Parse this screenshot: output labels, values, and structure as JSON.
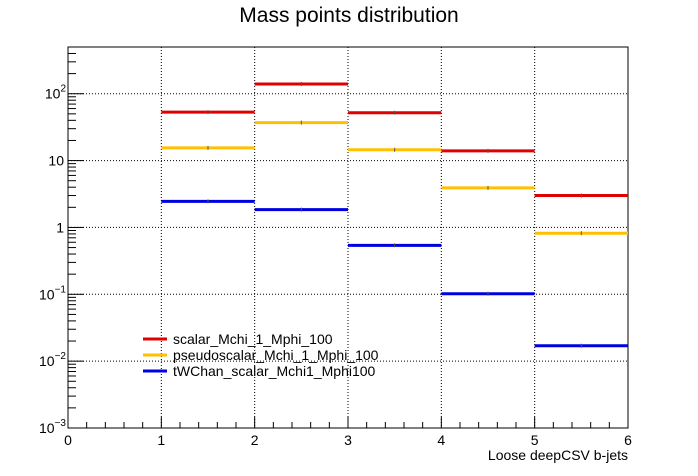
{
  "chart_data": {
    "type": "step",
    "title": "Mass points distribution",
    "xlabel": "Loose deepCSV b-jets",
    "ylabel": "",
    "xlim": [
      0,
      6
    ],
    "ylim": [
      0.001,
      500
    ],
    "yscale": "log",
    "grid": true,
    "legend_position": "bottom-left",
    "x_ticks": [
      "0",
      "1",
      "2",
      "3",
      "4",
      "5",
      "6"
    ],
    "y_ticks": [
      {
        "value": 0.001,
        "base": "10",
        "exp": "−3"
      },
      {
        "value": 0.01,
        "base": "10",
        "exp": "−2"
      },
      {
        "value": 0.1,
        "base": "10",
        "exp": "−1"
      },
      {
        "value": 1,
        "base": "1",
        "exp": ""
      },
      {
        "value": 10,
        "base": "10",
        "exp": ""
      },
      {
        "value": 100,
        "base": "10",
        "exp": "2"
      }
    ],
    "bins": [
      [
        1,
        2
      ],
      [
        2,
        3
      ],
      [
        3,
        4
      ],
      [
        4,
        5
      ],
      [
        5,
        6
      ]
    ],
    "series": [
      {
        "name": "scalar_Mchi_1_Mphi_100",
        "color": "#e00000",
        "values": [
          53,
          140,
          52,
          14,
          3.0
        ]
      },
      {
        "name": "pseudoscalar_Mchi_1_Mphi_100",
        "color": "#ffc000",
        "values": [
          15.5,
          37,
          14.5,
          3.9,
          0.82
        ]
      },
      {
        "name": "tWChan_scalar_Mchi1_Mphi100",
        "color": "#0000e0",
        "values": [
          2.45,
          1.85,
          0.54,
          0.102,
          0.017
        ]
      }
    ]
  }
}
